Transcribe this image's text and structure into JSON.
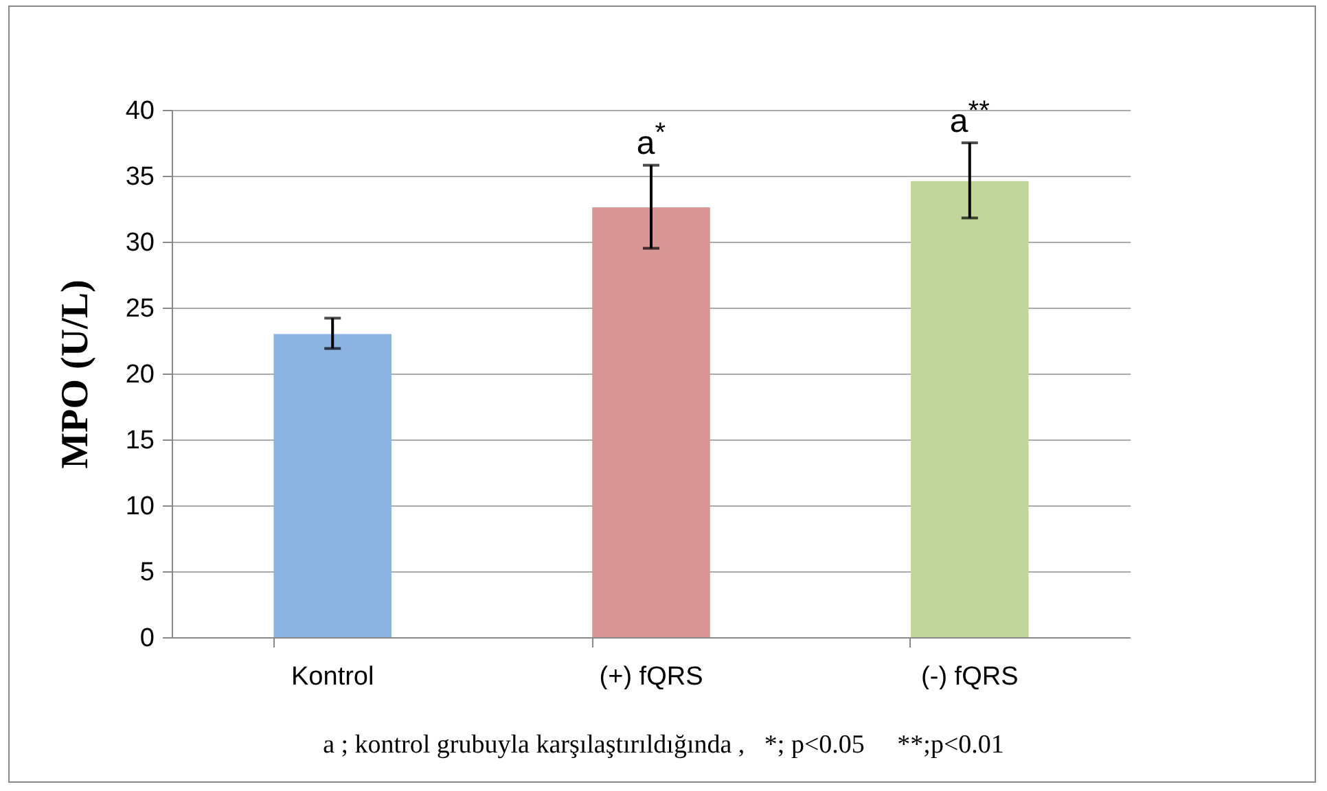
{
  "chart_data": {
    "type": "bar",
    "ylabel": "MPO (U/L)",
    "categories": [
      "Kontrol",
      "(+) fQRS",
      "(-) fQRS"
    ],
    "values": [
      23.0,
      32.6,
      34.6
    ],
    "colors": [
      "#8db3e2",
      "#d99694",
      "#c3d69b"
    ],
    "errors": [
      [
        21.9,
        24.2
      ],
      [
        29.5,
        35.8
      ],
      [
        31.8,
        37.5
      ]
    ],
    "ylim": [
      0,
      40
    ],
    "yticks": [
      0,
      5,
      10,
      15,
      20,
      25,
      30,
      35,
      40
    ],
    "grid": "y",
    "annotations": [
      {
        "text": "a$^{*}$",
        "x": "(+) fQRS",
        "y": 35.8
      },
      {
        "text": "a$^{**}$",
        "x": "(-) fQRS",
        "y": 37.5
      },
      "a ; kontrol grubuyla karşılaştırıldığında ,   *; p<0.05     **;p<0.01"
    ]
  }
}
